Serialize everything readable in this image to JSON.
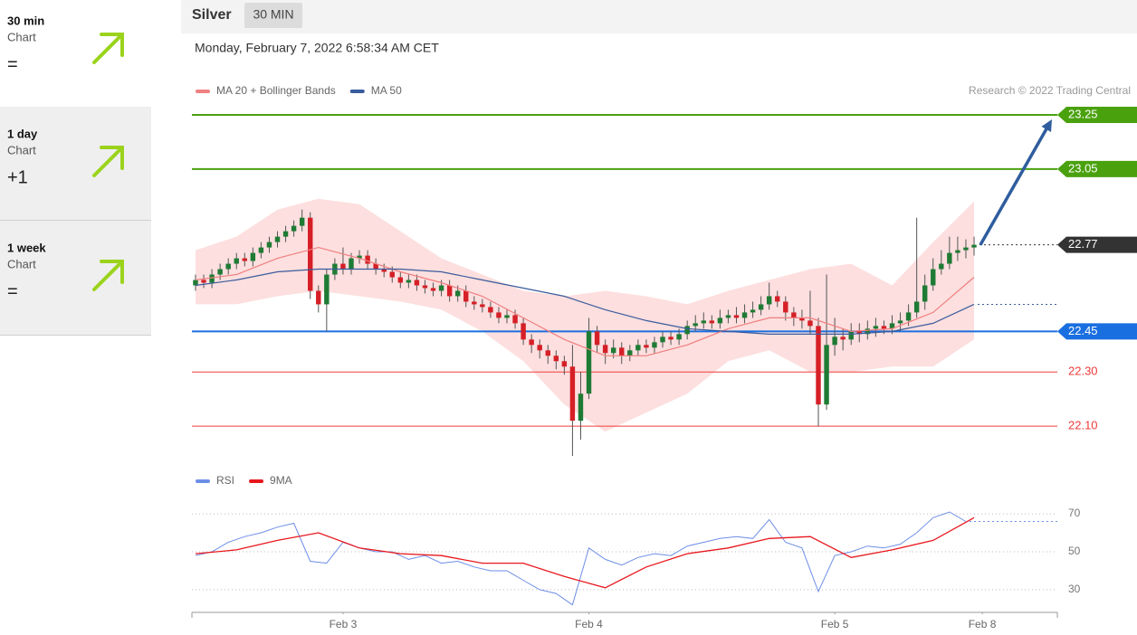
{
  "sidebar": [
    {
      "period": "30 min",
      "label": "Chart",
      "change": "="
    },
    {
      "period": "1 day",
      "label": "Chart",
      "change": "+1"
    },
    {
      "period": "1 week",
      "label": "Chart",
      "change": "="
    }
  ],
  "header": {
    "instrument": "Silver",
    "interval": "30 MIN",
    "date": "Monday, February 7, 2022 6:58:34 AM CET"
  },
  "chart_data": [
    {
      "type": "candlestick",
      "annotation": "Research © 2022 Trading Central",
      "up_color": "#1e7b34",
      "down_color": "#d61f26",
      "xlim": [
        -0.44,
        105.16
      ],
      "ylim": [
        21.97,
        23.29
      ],
      "open": [
        22.62,
        22.64,
        22.63,
        22.66,
        22.68,
        22.7,
        22.72,
        22.71,
        22.74,
        22.76,
        22.78,
        22.8,
        22.82,
        22.84,
        22.87,
        22.6,
        22.55,
        22.66,
        22.7,
        22.68,
        22.72,
        22.73,
        22.7,
        22.68,
        22.67,
        22.65,
        22.63,
        22.64,
        22.62,
        22.61,
        22.6,
        22.62,
        22.58,
        22.6,
        22.56,
        22.55,
        22.54,
        22.52,
        22.5,
        22.51,
        22.48,
        22.42,
        22.4,
        22.38,
        22.36,
        22.34,
        22.32,
        22.12,
        22.22,
        22.45,
        22.4,
        22.37,
        22.39,
        22.36,
        22.38,
        22.4,
        22.39,
        22.41,
        22.43,
        22.42,
        22.44,
        22.47,
        22.48,
        22.49,
        22.48,
        22.5,
        22.51,
        22.5,
        22.52,
        22.53,
        22.55,
        22.58,
        22.56,
        22.52,
        22.5,
        22.49,
        22.47,
        22.18,
        22.4,
        22.43,
        22.42,
        22.45,
        22.44,
        22.46,
        22.47,
        22.46,
        22.48,
        22.49,
        22.52,
        22.56,
        22.62,
        22.68,
        22.7,
        22.74,
        22.75,
        22.76
      ],
      "high": [
        22.66,
        22.66,
        22.68,
        22.7,
        22.72,
        22.74,
        22.74,
        22.76,
        22.78,
        22.8,
        22.82,
        22.84,
        22.86,
        22.9,
        22.89,
        22.62,
        22.68,
        22.72,
        22.76,
        22.74,
        22.75,
        22.75,
        22.72,
        22.7,
        22.69,
        22.67,
        22.66,
        22.66,
        22.64,
        22.63,
        22.64,
        22.64,
        22.62,
        22.62,
        22.58,
        22.57,
        22.56,
        22.54,
        22.53,
        22.53,
        22.5,
        22.44,
        22.42,
        22.4,
        22.38,
        22.36,
        22.4,
        22.3,
        22.5,
        22.47,
        22.42,
        22.42,
        22.41,
        22.4,
        22.42,
        22.42,
        22.43,
        22.45,
        22.45,
        22.46,
        22.49,
        22.51,
        22.52,
        22.51,
        22.53,
        22.53,
        22.54,
        22.55,
        22.56,
        22.58,
        22.63,
        22.6,
        22.58,
        22.54,
        22.53,
        22.6,
        22.5,
        22.66,
        22.5,
        22.46,
        22.48,
        22.48,
        22.49,
        22.5,
        22.49,
        22.51,
        22.52,
        22.55,
        22.87,
        22.66,
        22.72,
        22.75,
        22.8,
        22.8,
        22.79,
        22.8
      ],
      "low": [
        22.6,
        22.61,
        22.61,
        22.64,
        22.66,
        22.68,
        22.69,
        22.69,
        22.72,
        22.74,
        22.76,
        22.78,
        22.8,
        22.82,
        22.57,
        22.52,
        22.45,
        22.64,
        22.66,
        22.66,
        22.7,
        22.68,
        22.66,
        22.65,
        22.63,
        22.61,
        22.61,
        22.6,
        22.59,
        22.58,
        22.58,
        22.56,
        22.56,
        22.54,
        22.53,
        22.52,
        22.5,
        22.48,
        22.48,
        22.46,
        22.4,
        22.37,
        22.35,
        22.33,
        22.31,
        22.29,
        21.99,
        22.05,
        22.2,
        22.37,
        22.33,
        22.35,
        22.33,
        22.34,
        22.36,
        22.37,
        22.37,
        22.39,
        22.4,
        22.4,
        22.42,
        22.45,
        22.46,
        22.46,
        22.46,
        22.48,
        22.48,
        22.48,
        22.5,
        22.51,
        22.53,
        22.54,
        22.49,
        22.47,
        22.46,
        22.44,
        22.1,
        22.16,
        22.36,
        22.38,
        22.4,
        22.41,
        22.42,
        22.43,
        22.44,
        22.44,
        22.45,
        22.47,
        22.5,
        22.53,
        22.6,
        22.66,
        22.68,
        22.71,
        22.72,
        22.73
      ],
      "close": [
        22.64,
        22.63,
        22.66,
        22.68,
        22.7,
        22.72,
        22.71,
        22.74,
        22.76,
        22.78,
        22.8,
        22.82,
        22.84,
        22.87,
        22.6,
        22.55,
        22.66,
        22.7,
        22.68,
        22.72,
        22.73,
        22.7,
        22.68,
        22.67,
        22.65,
        22.63,
        22.64,
        22.62,
        22.61,
        22.6,
        22.62,
        22.58,
        22.6,
        22.56,
        22.55,
        22.54,
        22.52,
        22.5,
        22.51,
        22.48,
        22.42,
        22.4,
        22.38,
        22.36,
        22.34,
        22.32,
        22.12,
        22.22,
        22.45,
        22.4,
        22.37,
        22.39,
        22.36,
        22.38,
        22.4,
        22.39,
        22.41,
        22.43,
        22.42,
        22.44,
        22.47,
        22.48,
        22.49,
        22.48,
        22.5,
        22.51,
        22.5,
        22.52,
        22.53,
        22.55,
        22.58,
        22.56,
        22.52,
        22.5,
        22.49,
        22.47,
        22.18,
        22.4,
        22.43,
        22.42,
        22.45,
        22.44,
        22.46,
        22.47,
        22.46,
        22.48,
        22.49,
        22.52,
        22.56,
        22.62,
        22.68,
        22.7,
        22.74,
        22.75,
        22.76,
        22.77
      ],
      "series": [
        {
          "name": "MA 20 + Bollinger Bands",
          "color": "#f07f7f",
          "band_color": "#fdd9d9",
          "x": [
            0,
            5,
            10,
            15,
            20,
            25,
            30,
            35,
            40,
            45,
            50,
            55,
            60,
            65,
            70,
            75,
            80,
            85,
            90,
            95
          ],
          "values": [
            22.64,
            22.66,
            22.72,
            22.76,
            22.72,
            22.67,
            22.63,
            22.58,
            22.5,
            22.42,
            22.36,
            22.36,
            22.4,
            22.46,
            22.5,
            22.5,
            22.45,
            22.46,
            22.52,
            22.65
          ],
          "upper": [
            22.75,
            22.8,
            22.9,
            22.94,
            22.92,
            22.82,
            22.72,
            22.66,
            22.6,
            22.58,
            22.6,
            22.58,
            22.55,
            22.6,
            22.64,
            22.68,
            22.7,
            22.62,
            22.78,
            22.93
          ],
          "lower": [
            22.55,
            22.55,
            22.58,
            22.6,
            22.58,
            22.56,
            22.53,
            22.45,
            22.34,
            22.18,
            22.08,
            22.15,
            22.22,
            22.34,
            22.38,
            22.3,
            22.3,
            22.32,
            22.32,
            22.42
          ]
        },
        {
          "name": "MA 50",
          "color": "#3a5c9c",
          "x": [
            0,
            5,
            10,
            15,
            20,
            25,
            30,
            35,
            40,
            45,
            50,
            55,
            60,
            65,
            70,
            75,
            80,
            85,
            90,
            95
          ],
          "values": [
            22.62,
            22.64,
            22.67,
            22.68,
            22.68,
            22.68,
            22.67,
            22.64,
            22.61,
            22.58,
            22.53,
            22.49,
            22.46,
            22.45,
            22.44,
            22.44,
            22.44,
            22.45,
            22.48,
            22.55
          ]
        }
      ],
      "levels": [
        {
          "value": 23.25,
          "color": "#4aa10e",
          "flag": true,
          "line": "solid"
        },
        {
          "value": 23.05,
          "color": "#4aa10e",
          "flag": true,
          "line": "solid"
        },
        {
          "value": 22.77,
          "color": "#333333",
          "flag": true,
          "line": "dotted"
        },
        {
          "value": 22.45,
          "color": "#1a6fe0",
          "flag": true,
          "line": "solid"
        },
        {
          "value": 22.3,
          "label": "22.30",
          "color": "#ee3b3b",
          "flag": false,
          "line": "solid"
        },
        {
          "value": 22.1,
          "label": "22.10",
          "color": "#ee3b3b",
          "flag": false,
          "line": "solid"
        }
      ],
      "arrow_color": "#2f5d9e"
    },
    {
      "type": "line",
      "xlim": [
        -0.44,
        105.16
      ],
      "ylim": [
        19,
        81
      ],
      "yticks": [
        70,
        50,
        30
      ],
      "xticks": [
        {
          "value": 18,
          "label": "Feb 3"
        },
        {
          "value": 48,
          "label": "Feb 4"
        },
        {
          "value": 78,
          "label": "Feb 5"
        },
        {
          "value": 96,
          "label": "Feb 8"
        }
      ],
      "series": [
        {
          "name": "RSI",
          "color": "#6d8ee6",
          "x": [
            0,
            2,
            4,
            6,
            8,
            10,
            12,
            14,
            16,
            18,
            20,
            22,
            24,
            26,
            28,
            30,
            32,
            34,
            36,
            38,
            40,
            42,
            44,
            46,
            48,
            50,
            52,
            54,
            56,
            58,
            60,
            62,
            64,
            66,
            68,
            70,
            72,
            74,
            76,
            78,
            80,
            82,
            84,
            86,
            88,
            90,
            92,
            94
          ],
          "values": [
            48,
            50,
            55,
            58,
            60,
            63,
            65,
            45,
            44,
            55,
            52,
            50,
            50,
            46,
            48,
            44,
            45,
            42,
            40,
            40,
            35,
            30,
            28,
            22,
            52,
            46,
            43,
            47,
            49,
            48,
            53,
            55,
            57,
            58,
            57,
            67,
            55,
            52,
            29,
            48,
            50,
            53,
            52,
            54,
            60,
            68,
            71,
            66
          ]
        },
        {
          "name": "9MA",
          "color": "#e8171d",
          "x": [
            0,
            5,
            10,
            15,
            20,
            25,
            30,
            35,
            40,
            45,
            50,
            55,
            60,
            65,
            70,
            75,
            80,
            85,
            90,
            95
          ],
          "values": [
            49,
            51,
            56,
            60,
            52,
            49,
            48,
            44,
            44,
            37,
            31,
            42,
            49,
            52,
            57,
            58,
            47,
            51,
            56,
            68
          ]
        }
      ]
    }
  ]
}
